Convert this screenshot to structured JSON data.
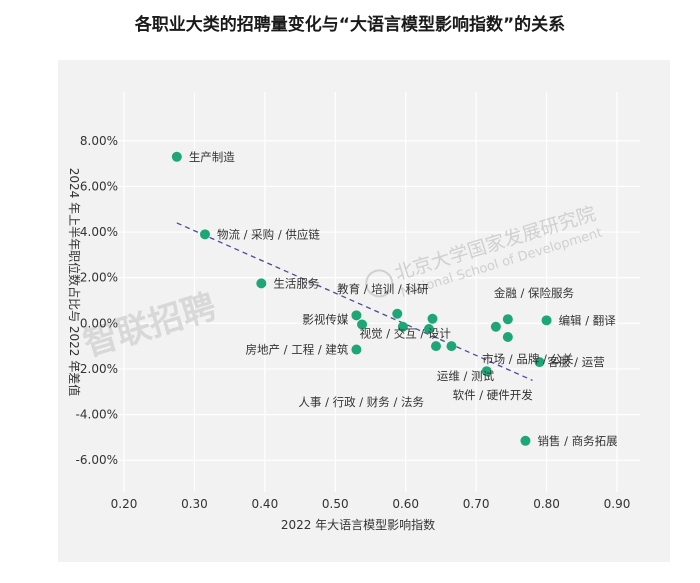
{
  "title": "各职业大类的招聘量变化与“大语言模型影响指数”的关系",
  "watermarks": {
    "left": "智联招聘",
    "right_cn": "北京大学国家发展研究院",
    "right_en": "National School of Development"
  },
  "colors": {
    "point": "#1fa676",
    "trend": "#4a4a99",
    "panel": "#f2f2f2",
    "grid": "#ffffff"
  },
  "chart_data": {
    "type": "scatter",
    "xlabel": "2022 年大语言模型影响指数",
    "ylabel": "2024 年上半年职位数占比与 2022 年差值",
    "xlim": [
      0.2,
      0.9
    ],
    "ylim": [
      -7.0,
      9.0
    ],
    "x_ticks": [
      "0.20",
      "0.30",
      "0.40",
      "0.50",
      "0.60",
      "0.70",
      "0.80",
      "0.90"
    ],
    "x_tick_values": [
      0.2,
      0.3,
      0.4,
      0.5,
      0.6,
      0.7,
      0.8,
      0.9
    ],
    "y_ticks": [
      "8.00%",
      "6.00%",
      "4.00%",
      "2.00%",
      "0.00%",
      "-2.00%",
      "-4.00%",
      "-6.00%"
    ],
    "y_tick_values": [
      8,
      6,
      4,
      2,
      0,
      -2,
      -4,
      -6
    ],
    "trendline": {
      "x": [
        0.275,
        0.78
      ],
      "y": [
        4.4,
        -2.5
      ]
    },
    "points": [
      {
        "label": "生产制造",
        "x": 0.275,
        "y": 7.3
      },
      {
        "label": "物流 / 采购 / 供应链",
        "x": 0.315,
        "y": 3.9
      },
      {
        "label": "生活服务",
        "x": 0.395,
        "y": 1.75
      },
      {
        "label": "影视传媒",
        "x": 0.53,
        "y": 0.35
      },
      {
        "label": "",
        "x": 0.538,
        "y": -0.05
      },
      {
        "label": "教育 / 培训 / 科研",
        "x": 0.638,
        "y": 0.2
      },
      {
        "label": "视觉 / 交互 / 设计",
        "x": 0.588,
        "y": 0.42
      },
      {
        "label": "",
        "x": 0.596,
        "y": -0.15
      },
      {
        "label": "",
        "x": 0.633,
        "y": -0.25
      },
      {
        "label": "房地产 / 工程 / 建筑",
        "x": 0.53,
        "y": -1.15
      },
      {
        "label": "人事 / 行政 / 财务 / 法务",
        "x": 0.643,
        "y": -1.0
      },
      {
        "label": "运维 / 测试",
        "x": 0.665,
        "y": -1.0
      },
      {
        "label": "软件 / 硬件开发",
        "x": 0.715,
        "y": -2.1
      },
      {
        "label": "金融 / 保险服务",
        "x": 0.745,
        "y": 0.18
      },
      {
        "label": "",
        "x": 0.728,
        "y": -0.15
      },
      {
        "label": "编辑 / 翻译",
        "x": 0.8,
        "y": 0.13
      },
      {
        "label": "市场 / 品牌 / 公关",
        "x": 0.745,
        "y": -0.6
      },
      {
        "label": "客服 / 运营",
        "x": 0.79,
        "y": -1.7
      },
      {
        "label": "销售 / 商务拓展",
        "x": 0.77,
        "y": -5.15
      }
    ]
  }
}
